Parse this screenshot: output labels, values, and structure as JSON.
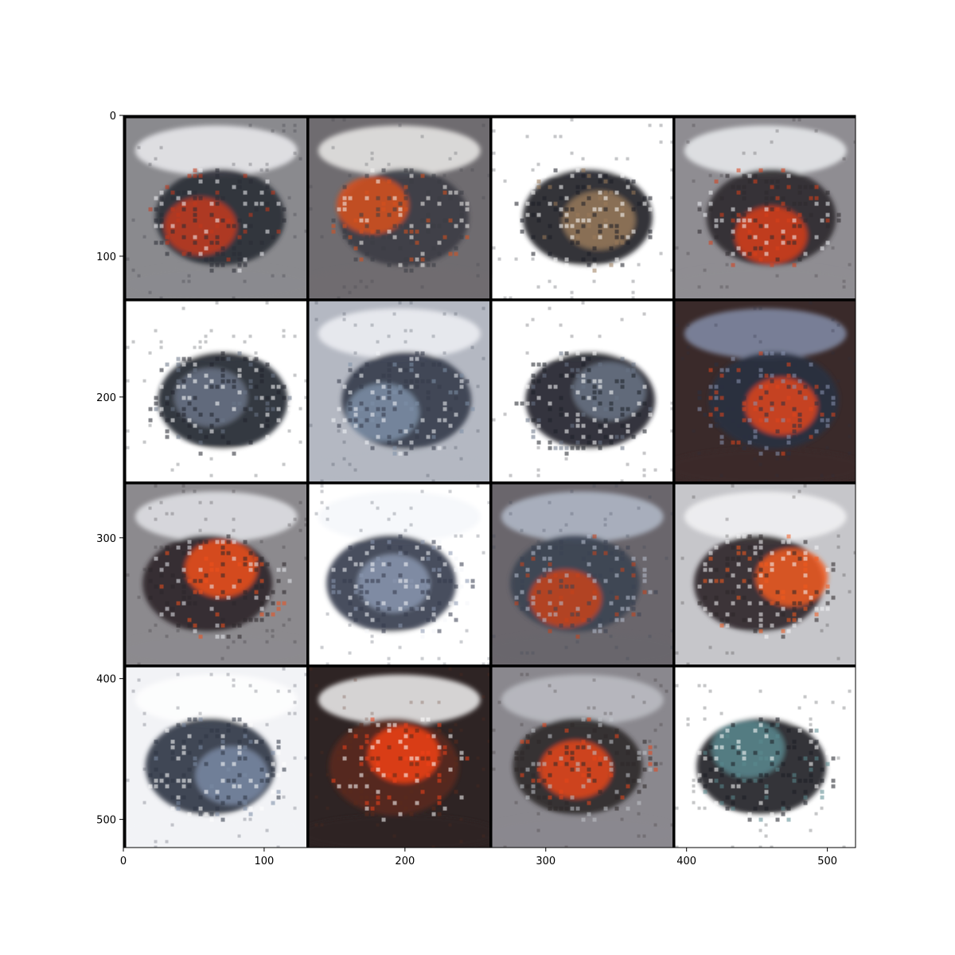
{
  "chart_data": {
    "type": "heatmap",
    "title": "",
    "xlabel": "",
    "ylabel": "",
    "xlim": [
      0,
      520
    ],
    "ylim": [
      520,
      0
    ],
    "grid": false,
    "image_grid": {
      "rows": 4,
      "cols": 4,
      "tile_size": 128,
      "padding": 2,
      "border_color": "#000000"
    },
    "x_ticks": [
      0,
      100,
      200,
      300,
      400,
      500
    ],
    "y_ticks": [
      0,
      100,
      200,
      300,
      400,
      500
    ],
    "x_tick_labels": [
      "0",
      "100",
      "200",
      "300",
      "400",
      "500"
    ],
    "y_tick_labels": [
      "0",
      "100",
      "200",
      "300",
      "400",
      "500"
    ],
    "tiles": [
      {
        "row": 0,
        "col": 0,
        "background": "#8a8a8e",
        "subject": "#2a2c34",
        "accent": "#c4391c",
        "light": "#f2f3f6"
      },
      {
        "row": 0,
        "col": 1,
        "background": "#6f6c70",
        "subject": "#3a3c44",
        "accent": "#d9501e",
        "light": "#f4f2f0"
      },
      {
        "row": 0,
        "col": 2,
        "background": "#ffffff",
        "subject": "#1c1e26",
        "accent": "#9a7a5a",
        "light": "#ffffff"
      },
      {
        "row": 0,
        "col": 3,
        "background": "#8f8d92",
        "subject": "#2e2a2e",
        "accent": "#d8401a",
        "light": "#f0f2f5"
      },
      {
        "row": 1,
        "col": 0,
        "background": "#ffffff",
        "subject": "#20232c",
        "accent": "#6a7486",
        "light": "#ffffff"
      },
      {
        "row": 1,
        "col": 1,
        "background": "#b4b8c2",
        "subject": "#343a4a",
        "accent": "#7d90a8",
        "light": "#f2f4f8"
      },
      {
        "row": 1,
        "col": 2,
        "background": "#ffffff",
        "subject": "#1e2028",
        "accent": "#6a7486",
        "light": "#ffffff"
      },
      {
        "row": 1,
        "col": 3,
        "background": "#3a2a2a",
        "subject": "#2a3040",
        "accent": "#e0461c",
        "light": "#8894b0"
      },
      {
        "row": 2,
        "col": 0,
        "background": "#8c8a8e",
        "subject": "#2c262a",
        "accent": "#f0501c",
        "light": "#e8eaee"
      },
      {
        "row": 2,
        "col": 1,
        "background": "#ffffff",
        "subject": "#343a4c",
        "accent": "#8a98b0",
        "light": "#f4f6fa"
      },
      {
        "row": 2,
        "col": 2,
        "background": "#6a666c",
        "subject": "#3a4252",
        "accent": "#c8421a",
        "light": "#b8c0d0"
      },
      {
        "row": 2,
        "col": 3,
        "background": "#c6c6ca",
        "subject": "#2c2628",
        "accent": "#f25a1e",
        "light": "#f6f6f8"
      },
      {
        "row": 3,
        "col": 0,
        "background": "#f2f3f6",
        "subject": "#2e3444",
        "accent": "#7a8aa4",
        "light": "#ffffff"
      },
      {
        "row": 3,
        "col": 1,
        "background": "#2e2424",
        "subject": "#5a2a1c",
        "accent": "#f0421a",
        "light": "#ffffff"
      },
      {
        "row": 3,
        "col": 2,
        "background": "#8a888e",
        "subject": "#2e2828",
        "accent": "#e8461a",
        "light": "#c0c2c8"
      },
      {
        "row": 3,
        "col": 3,
        "background": "#ffffff",
        "subject": "#1c1e24",
        "accent": "#5a8a90",
        "light": "#ffffff"
      }
    ]
  }
}
